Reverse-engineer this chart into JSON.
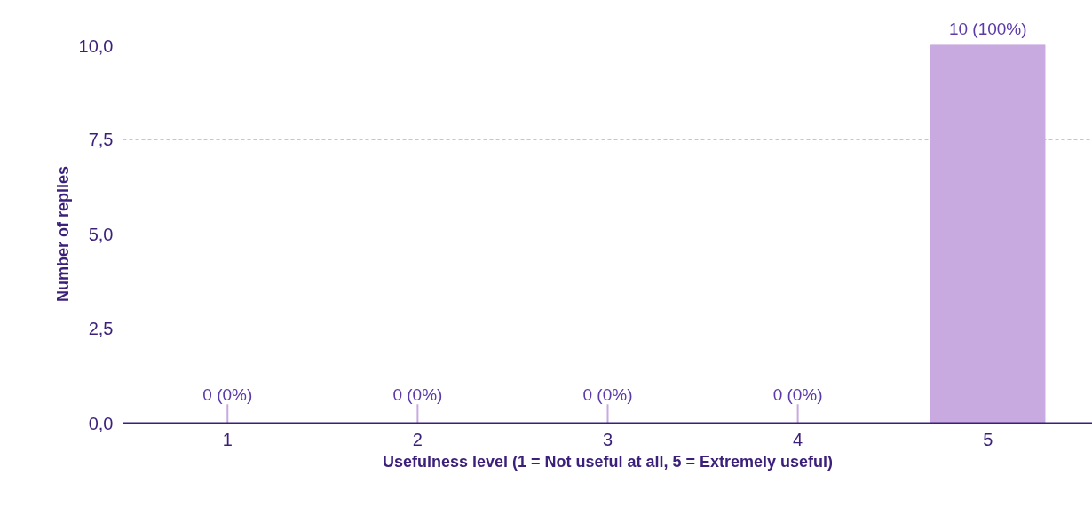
{
  "chart_data": {
    "type": "bar",
    "xlabel": "Usefulness level (1 = Not useful at all, 5 = Extremely useful)",
    "ylabel": "Number of replies",
    "categories": [
      "1",
      "2",
      "3",
      "4",
      "5"
    ],
    "values": [
      0,
      0,
      0,
      0,
      10
    ],
    "value_labels": [
      "0 (0%)",
      "0 (0%)",
      "0 (0%)",
      "0 (0%)",
      "10 (100%)"
    ],
    "color": "#c9aae0",
    "ylim": [
      0,
      10
    ],
    "yticks": [
      {
        "value": 0,
        "label": "0,0"
      },
      {
        "value": 2.5,
        "label": "2,5"
      },
      {
        "value": 5,
        "label": "5,0"
      },
      {
        "value": 7.5,
        "label": "7,5"
      },
      {
        "value": 10,
        "label": "10,0"
      }
    ],
    "grid": "y"
  }
}
